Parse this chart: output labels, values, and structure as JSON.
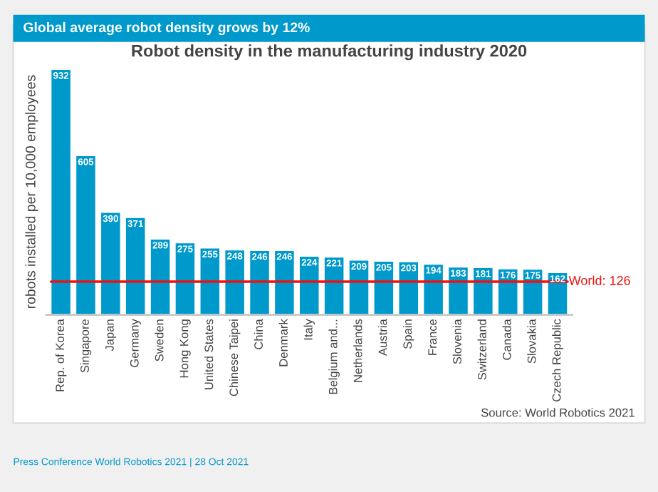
{
  "chart_data": {
    "type": "bar",
    "title": "Robot density in the manufacturing industry 2020",
    "subtitle": "Global average robot density grows by 12%",
    "ylabel": "robots installed per 10,000 employees",
    "categories": [
      "Rep. of Korea",
      "Singapore",
      "Japan",
      "Germany",
      "Sweden",
      "Hong Kong",
      "United States",
      "Chinese Taipei",
      "China",
      "Denmark",
      "Italy",
      "Belgium and...",
      "Netherlands",
      "Austria",
      "Spain",
      "France",
      "Slovenia",
      "Switzerland",
      "Canada",
      "Slovakia",
      "Czech Republic"
    ],
    "values": [
      932,
      605,
      390,
      371,
      289,
      275,
      255,
      248,
      246,
      246,
      224,
      221,
      209,
      205,
      203,
      194,
      183,
      181,
      176,
      175,
      162
    ],
    "color": "#0099cc",
    "data_labels": true,
    "grid": false,
    "legend": false,
    "ref_lines": [
      {
        "axis": "y",
        "value": 126,
        "label": "World: 126",
        "color": "#ee1111"
      }
    ],
    "annotations": [
      "Source: World Robotics 2021",
      "Press Conference World Robotics 2021 | 28 Oct 2021"
    ]
  }
}
